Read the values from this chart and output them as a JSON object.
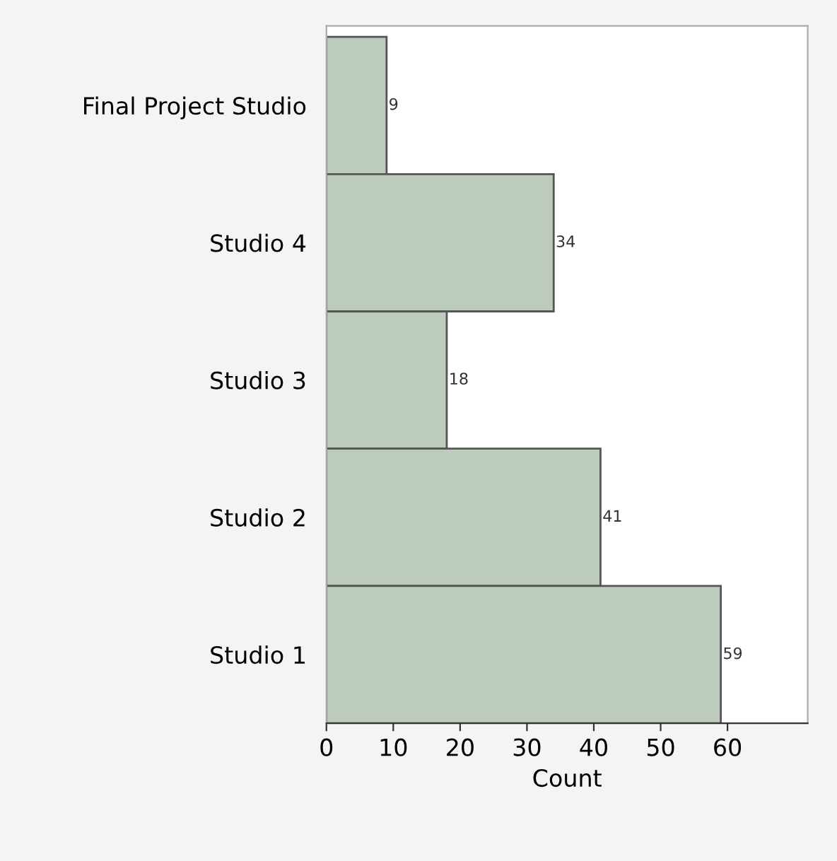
{
  "chart_data": {
    "type": "bar",
    "orientation": "horizontal",
    "xlabel": "Count",
    "categories": [
      "Final Project Studio",
      "Studio 4",
      "Studio 3",
      "Studio 2",
      "Studio 1"
    ],
    "values": [
      9,
      34,
      18,
      41,
      59
    ],
    "color": "#bccbbc",
    "xlim": [
      0,
      72
    ],
    "xticks": [
      0,
      10,
      20,
      30,
      40,
      50,
      60
    ],
    "data_labels": true,
    "grid": false,
    "legend": false
  }
}
